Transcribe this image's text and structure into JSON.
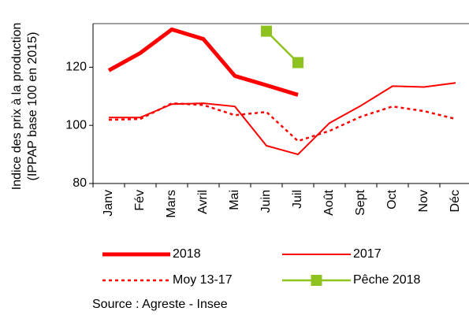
{
  "chart_data": {
    "type": "line",
    "y_label": [
      "Indice des prix à la production",
      "(IPPAP base 100 en 2015)"
    ],
    "source": "Source : Agreste - Insee",
    "categories": [
      "Janv",
      "Fév",
      "Mars",
      "Avril",
      "Mai",
      "Juin",
      "Juil",
      "Août",
      "Sept",
      "Oct",
      "Nov",
      "Déc"
    ],
    "ylim": [
      80,
      135
    ],
    "yticks": [
      80,
      100,
      120
    ],
    "grid": false,
    "series": [
      {
        "name": "2018",
        "color": "#ff0000",
        "style": "thick",
        "values": [
          118.9,
          124.9,
          133,
          129.7,
          117,
          113.8,
          110.5,
          null,
          null,
          null,
          null,
          null
        ]
      },
      {
        "name": "2017",
        "color": "#ff0000",
        "style": "solid",
        "values": [
          102.7,
          102.7,
          107.3,
          107.6,
          106.5,
          93,
          90,
          100.8,
          106.8,
          113.5,
          113.2,
          114.6
        ]
      },
      {
        "name": "Moy 13-17",
        "color": "#ff0000",
        "style": "dotted",
        "values": [
          101.9,
          102.2,
          107.6,
          107,
          103.5,
          104.6,
          94.6,
          98.1,
          103,
          106.5,
          104.9,
          102.2
        ]
      },
      {
        "name": "Pêche 2018",
        "color": "#8dc21f",
        "style": "marker",
        "values": [
          null,
          null,
          null,
          null,
          null,
          132.4,
          121.6,
          null,
          null,
          null,
          null,
          null
        ]
      }
    ]
  }
}
